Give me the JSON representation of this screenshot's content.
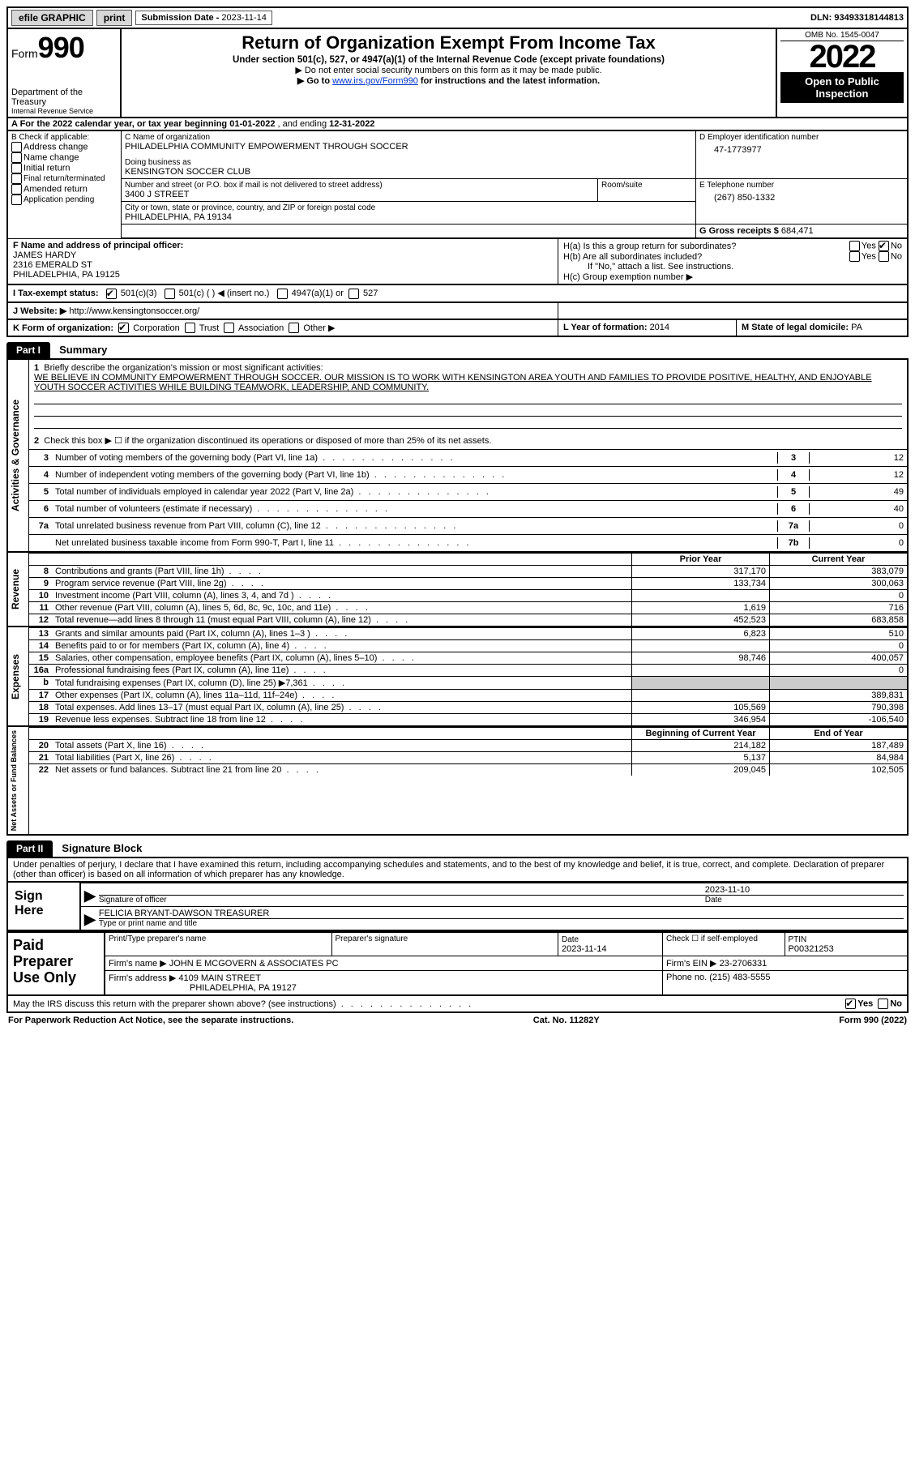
{
  "topbar": {
    "efile": "efile GRAPHIC",
    "print": "print",
    "submission_label": "Submission Date - ",
    "submission_date": "2023-11-14",
    "dln_label": "DLN: ",
    "dln": "93493318144813"
  },
  "header": {
    "form_label": "Form",
    "form_number": "990",
    "dept": "Department of the Treasury",
    "irs": "Internal Revenue Service",
    "title": "Return of Organization Exempt From Income Tax",
    "sub": "Under section 501(c), 527, or 4947(a)(1) of the Internal Revenue Code (except private foundations)",
    "note1": "▶ Do not enter social security numbers on this form as it may be made public.",
    "note2_a": "▶ Go to ",
    "note2_link": "www.irs.gov/Form990",
    "note2_b": " for instructions and the latest information.",
    "omb": "OMB No. 1545-0047",
    "year": "2022",
    "open": "Open to Public Inspection"
  },
  "row_a": {
    "text_a": "A For the 2022 calendar year, or tax year beginning ",
    "begin": "01-01-2022",
    "text_b": "   , and ending ",
    "end": "12-31-2022"
  },
  "box_b": {
    "label": "B Check if applicable:",
    "opts": [
      "Address change",
      "Name change",
      "Initial return",
      "Final return/terminated",
      "Amended return",
      "Application pending"
    ]
  },
  "box_c": {
    "label": "C Name of organization",
    "name": "PHILADELPHIA COMMUNITY EMPOWERMENT THROUGH SOCCER",
    "dba_label": "Doing business as",
    "dba": "KENSINGTON SOCCER CLUB",
    "street_label": "Number and street (or P.O. box if mail is not delivered to street address)",
    "room_label": "Room/suite",
    "street": "3400 J STREET",
    "city_label": "City or town, state or province, country, and ZIP or foreign postal code",
    "city": "PHILADELPHIA, PA  19134"
  },
  "box_d": {
    "label": "D Employer identification number",
    "ein": "47-1773977",
    "tel_label": "E Telephone number",
    "tel": "(267) 850-1332",
    "gross_label": "G Gross receipts $ ",
    "gross": "684,471"
  },
  "box_f": {
    "label": "F  Name and address of principal officer:",
    "name": "JAMES HARDY",
    "addr1": "2316 EMERALD ST",
    "addr2": "PHILADELPHIA, PA  19125"
  },
  "box_h": {
    "a_label": "H(a)  Is this a group return for subordinates?",
    "b_label": "H(b)  Are all subordinates included?",
    "b_note": "If \"No,\" attach a list. See instructions.",
    "c_label": "H(c)  Group exemption number ▶",
    "yes": "Yes",
    "no": "No"
  },
  "row_i": {
    "label": "I   Tax-exempt status:",
    "o1": "501(c)(3)",
    "o2": "501(c) (  ) ◀ (insert no.)",
    "o3": "4947(a)(1) or",
    "o4": "527"
  },
  "row_j": {
    "label": "J   Website: ▶ ",
    "url": "http://www.kensingtonsoccer.org/"
  },
  "row_k": {
    "label": "K Form of organization:",
    "o1": "Corporation",
    "o2": "Trust",
    "o3": "Association",
    "o4": "Other ▶",
    "l_label": "L Year of formation: ",
    "l_val": "2014",
    "m_label": "M State of legal domicile: ",
    "m_val": "PA"
  },
  "part1": {
    "hdr": "Part I",
    "title": "Summary",
    "l1_label": "Briefly describe the organization's mission or most significant activities:",
    "l1_text": "WE BELIEVE IN COMMUNITY EMPOWERMENT THROUGH SOCCER. OUR MISSION IS TO WORK WITH KENSINGTON AREA YOUTH AND FAMILIES TO PROVIDE POSITIVE, HEALTHY, AND ENJOYABLE YOUTH SOCCER ACTIVITIES WHILE BUILDING TEAMWORK, LEADERSHIP, AND COMMUNITY.",
    "l2": "Check this box ▶ ☐ if the organization discontinued its operations or disposed of more than 25% of its net assets.",
    "gov_label": "Activities & Governance",
    "rev_label": "Revenue",
    "exp_label": "Expenses",
    "net_label": "Net Assets or Fund Balances",
    "prior": "Prior Year",
    "current": "Current Year",
    "beg": "Beginning of Current Year",
    "end": "End of Year",
    "rows_gov": [
      {
        "n": "3",
        "t": "Number of voting members of the governing body (Part VI, line 1a)",
        "box": "3",
        "v": "12"
      },
      {
        "n": "4",
        "t": "Number of independent voting members of the governing body (Part VI, line 1b)",
        "box": "4",
        "v": "12"
      },
      {
        "n": "5",
        "t": "Total number of individuals employed in calendar year 2022 (Part V, line 2a)",
        "box": "5",
        "v": "49"
      },
      {
        "n": "6",
        "t": "Total number of volunteers (estimate if necessary)",
        "box": "6",
        "v": "40"
      },
      {
        "n": "7a",
        "t": "Total unrelated business revenue from Part VIII, column (C), line 12",
        "box": "7a",
        "v": "0"
      },
      {
        "n": "",
        "t": "Net unrelated business taxable income from Form 990-T, Part I, line 11",
        "box": "7b",
        "v": "0"
      }
    ],
    "rows_rev": [
      {
        "n": "8",
        "t": "Contributions and grants (Part VIII, line 1h)",
        "p": "317,170",
        "c": "383,079"
      },
      {
        "n": "9",
        "t": "Program service revenue (Part VIII, line 2g)",
        "p": "133,734",
        "c": "300,063"
      },
      {
        "n": "10",
        "t": "Investment income (Part VIII, column (A), lines 3, 4, and 7d )",
        "p": "",
        "c": "0"
      },
      {
        "n": "11",
        "t": "Other revenue (Part VIII, column (A), lines 5, 6d, 8c, 9c, 10c, and 11e)",
        "p": "1,619",
        "c": "716"
      },
      {
        "n": "12",
        "t": "Total revenue—add lines 8 through 11 (must equal Part VIII, column (A), line 12)",
        "p": "452,523",
        "c": "683,858"
      }
    ],
    "rows_exp": [
      {
        "n": "13",
        "t": "Grants and similar amounts paid (Part IX, column (A), lines 1–3 )",
        "p": "6,823",
        "c": "510"
      },
      {
        "n": "14",
        "t": "Benefits paid to or for members (Part IX, column (A), line 4)",
        "p": "",
        "c": "0"
      },
      {
        "n": "15",
        "t": "Salaries, other compensation, employee benefits (Part IX, column (A), lines 5–10)",
        "p": "98,746",
        "c": "400,057"
      },
      {
        "n": "16a",
        "t": "Professional fundraising fees (Part IX, column (A), line 11e)",
        "p": "",
        "c": "0"
      },
      {
        "n": "b",
        "t": "Total fundraising expenses (Part IX, column (D), line 25) ▶7,361",
        "p": "GREY",
        "c": "GREY"
      },
      {
        "n": "17",
        "t": "Other expenses (Part IX, column (A), lines 11a–11d, 11f–24e)",
        "p": "",
        "c": "389,831"
      },
      {
        "n": "18",
        "t": "Total expenses. Add lines 13–17 (must equal Part IX, column (A), line 25)",
        "p": "105,569",
        "c": "790,398"
      },
      {
        "n": "19",
        "t": "Revenue less expenses. Subtract line 18 from line 12",
        "p": "346,954",
        "c": "-106,540"
      }
    ],
    "rows_net": [
      {
        "n": "20",
        "t": "Total assets (Part X, line 16)",
        "p": "214,182",
        "c": "187,489"
      },
      {
        "n": "21",
        "t": "Total liabilities (Part X, line 26)",
        "p": "5,137",
        "c": "84,984"
      },
      {
        "n": "22",
        "t": "Net assets or fund balances. Subtract line 21 from line 20",
        "p": "209,045",
        "c": "102,505"
      }
    ]
  },
  "part2": {
    "hdr": "Part II",
    "title": "Signature Block",
    "decl": "Under penalties of perjury, I declare that I have examined this return, including accompanying schedules and statements, and to the best of my knowledge and belief, it is true, correct, and complete. Declaration of preparer (other than officer) is based on all information of which preparer has any knowledge.",
    "sign_here": "Sign Here",
    "sig_officer": "Signature of officer",
    "sig_date": "2023-11-10",
    "date_label": "Date",
    "name_title": "FELICIA BRYANT-DAWSON  TREASURER",
    "type_label": "Type or print name and title"
  },
  "paid": {
    "label": "Paid Preparer Use Only",
    "r1_a": "Print/Type preparer's name",
    "r1_b": "Preparer's signature",
    "r1_c_label": "Date",
    "r1_c": "2023-11-14",
    "r1_d": "Check ☐ if self-employed",
    "r1_e_label": "PTIN",
    "r1_e": "P00321253",
    "r2_a": "Firm's name    ▶ ",
    "r2_a_val": "JOHN E MCGOVERN & ASSOCIATES PC",
    "r2_b": "Firm's EIN ▶ ",
    "r2_b_val": "23-2706331",
    "r3_a": "Firm's address ▶ ",
    "r3_a_val1": "4109 MAIN STREET",
    "r3_a_val2": "PHILADELPHIA, PA  19127",
    "r3_b": "Phone no. ",
    "r3_b_val": "(215) 483-5555"
  },
  "footer": {
    "q": "May the IRS discuss this return with the preparer shown above? (see instructions)",
    "yes": "Yes",
    "no": "No",
    "pra": "For Paperwork Reduction Act Notice, see the separate instructions.",
    "cat": "Cat. No. 11282Y",
    "form": "Form 990 (2022)"
  },
  "colors": {
    "black": "#000000",
    "link": "#0033cc",
    "grey_btn": "#d8d8d8",
    "grey_cell": "#cccccc"
  }
}
